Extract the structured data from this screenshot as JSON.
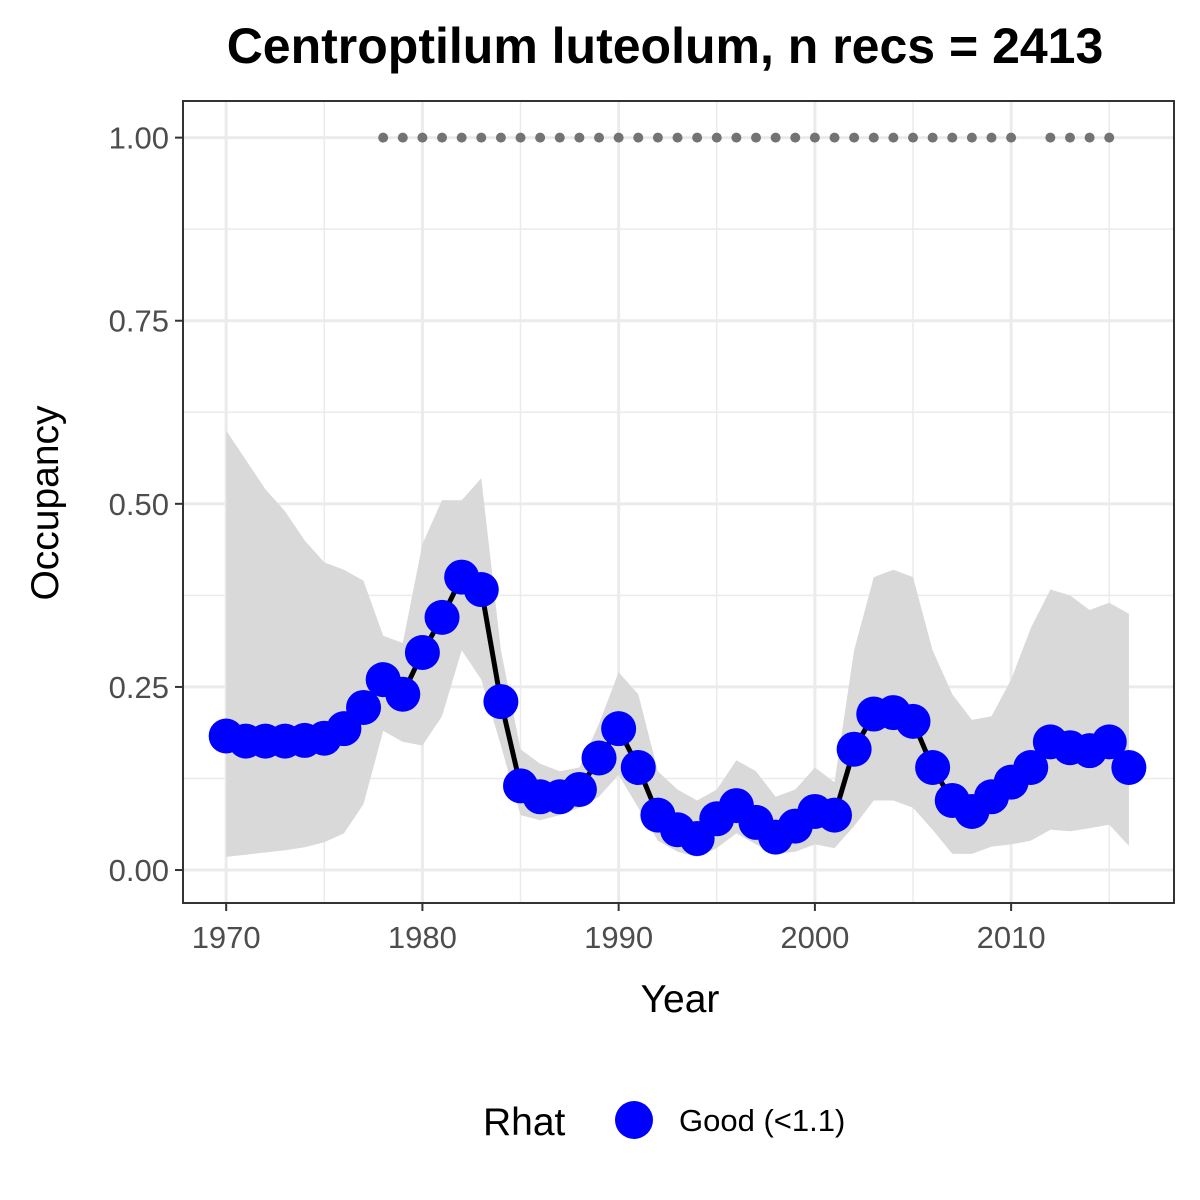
{
  "chart_data": {
    "type": "line",
    "title": "Centroptilum luteolum, n recs = 2413",
    "xlabel": "Year",
    "ylabel": "Occupancy",
    "xlim": [
      1967.8,
      2018.3
    ],
    "ylim": [
      -0.045,
      1.05
    ],
    "x_ticks": [
      1970,
      1980,
      1990,
      2000,
      2010
    ],
    "x_tick_labels": [
      "1970",
      "1980",
      "1990",
      "2000",
      "2010"
    ],
    "y_ticks": [
      0,
      0.25,
      0.5,
      0.75,
      1.0
    ],
    "y_tick_labels": [
      "0.00",
      "0.25",
      "0.50",
      "0.75",
      "1.00"
    ],
    "grid": true,
    "legend": {
      "position": "bottom",
      "title": "Rhat",
      "entries": [
        {
          "label": "Good (<1.1)",
          "color": "#0000ff"
        }
      ]
    },
    "colors": {
      "points": "#0000ff",
      "line": "#000000",
      "ribbon": "#d9d9d9",
      "record_dots": "#737373",
      "grid": "#ebebeb",
      "panel_border": "#333333"
    },
    "series": [
      {
        "name": "Good (<1.1)",
        "x": [
          1970,
          1971,
          1972,
          1973,
          1974,
          1975,
          1976,
          1977,
          1978,
          1979,
          1980,
          1981,
          1982,
          1983,
          1984,
          1985,
          1986,
          1987,
          1988,
          1989,
          1990,
          1991,
          1992,
          1993,
          1994,
          1995,
          1996,
          1997,
          1998,
          1999,
          2000,
          2001,
          2002,
          2003,
          2004,
          2005,
          2006,
          2007,
          2008,
          2009,
          2010,
          2011,
          2012,
          2013,
          2014,
          2015,
          2016
        ],
        "y": [
          0.183,
          0.176,
          0.176,
          0.176,
          0.177,
          0.18,
          0.193,
          0.222,
          0.26,
          0.24,
          0.297,
          0.345,
          0.4,
          0.383,
          0.23,
          0.115,
          0.1,
          0.1,
          0.11,
          0.153,
          0.193,
          0.14,
          0.075,
          0.055,
          0.043,
          0.07,
          0.088,
          0.065,
          0.045,
          0.06,
          0.08,
          0.075,
          0.165,
          0.213,
          0.215,
          0.203,
          0.14,
          0.095,
          0.08,
          0.1,
          0.12,
          0.14,
          0.175,
          0.167,
          0.163,
          0.175,
          0.14
        ]
      }
    ],
    "ribbon": {
      "x": [
        1970,
        1971,
        1972,
        1973,
        1974,
        1975,
        1976,
        1977,
        1978,
        1979,
        1980,
        1981,
        1982,
        1983,
        1984,
        1985,
        1986,
        1987,
        1988,
        1989,
        1990,
        1991,
        1992,
        1993,
        1994,
        1995,
        1996,
        1997,
        1998,
        1999,
        2000,
        2001,
        2002,
        2003,
        2004,
        2005,
        2006,
        2007,
        2008,
        2009,
        2010,
        2011,
        2012,
        2013,
        2014,
        2015,
        2016
      ],
      "lower": [
        0.018,
        0.021,
        0.024,
        0.027,
        0.031,
        0.038,
        0.05,
        0.09,
        0.19,
        0.175,
        0.17,
        0.21,
        0.3,
        0.26,
        0.17,
        0.075,
        0.068,
        0.075,
        0.085,
        0.1,
        0.13,
        0.085,
        0.04,
        0.025,
        0.018,
        0.03,
        0.05,
        0.035,
        0.022,
        0.025,
        0.035,
        0.03,
        0.06,
        0.095,
        0.095,
        0.085,
        0.055,
        0.022,
        0.022,
        0.032,
        0.035,
        0.04,
        0.055,
        0.053,
        0.057,
        0.062,
        0.033
      ],
      "upper": [
        0.6,
        0.56,
        0.52,
        0.49,
        0.45,
        0.42,
        0.41,
        0.395,
        0.32,
        0.31,
        0.445,
        0.505,
        0.505,
        0.535,
        0.3,
        0.165,
        0.145,
        0.135,
        0.14,
        0.2,
        0.27,
        0.24,
        0.135,
        0.11,
        0.095,
        0.11,
        0.15,
        0.135,
        0.1,
        0.11,
        0.14,
        0.12,
        0.3,
        0.4,
        0.41,
        0.4,
        0.3,
        0.24,
        0.205,
        0.21,
        0.26,
        0.33,
        0.383,
        0.375,
        0.355,
        0.365,
        0.35
      ]
    },
    "records": {
      "y": 1.0,
      "x": [
        1978,
        1979,
        1980,
        1981,
        1982,
        1983,
        1984,
        1985,
        1986,
        1987,
        1988,
        1989,
        1990,
        1991,
        1992,
        1993,
        1994,
        1995,
        1996,
        1997,
        1998,
        1999,
        2000,
        2001,
        2002,
        2003,
        2004,
        2005,
        2006,
        2007,
        2008,
        2009,
        2010,
        2012,
        2013,
        2014,
        2015
      ]
    }
  }
}
